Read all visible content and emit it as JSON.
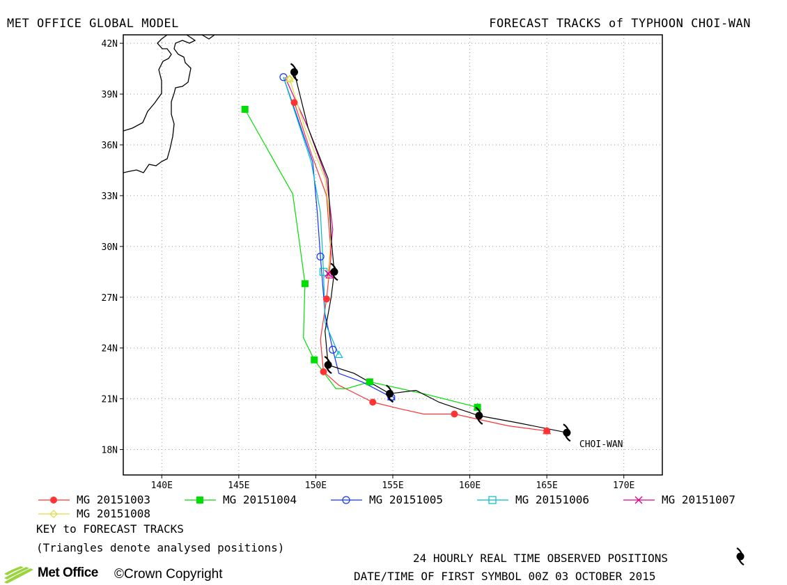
{
  "header": {
    "left": "MET OFFICE GLOBAL MODEL",
    "right": "FORECAST TRACKS of TYPHOON CHOI-WAN"
  },
  "chart_data": {
    "type": "line",
    "xlim": [
      137.5,
      172.5
    ],
    "ylim": [
      16.5,
      42.5
    ],
    "x_ticks": [
      140,
      145,
      150,
      155,
      160,
      165,
      170
    ],
    "x_tick_labels": [
      "140E",
      "145E",
      "150E",
      "155E",
      "160E",
      "165E",
      "170E"
    ],
    "y_ticks": [
      18,
      21,
      24,
      27,
      30,
      33,
      36,
      39,
      42
    ],
    "y_tick_labels": [
      "18N",
      "21N",
      "24N",
      "27N",
      "30N",
      "33N",
      "36N",
      "39N",
      "42N"
    ],
    "grid": true,
    "storm_label": "CHOI-WAN",
    "observed": [
      [
        166.3,
        19.0
      ],
      [
        160.6,
        20.0
      ],
      [
        154.8,
        21.3
      ],
      [
        150.8,
        23.0
      ],
      [
        151.2,
        28.5
      ],
      [
        148.6,
        40.3
      ]
    ],
    "observed_path": [
      [
        166.3,
        19.0
      ],
      [
        163.0,
        19.6
      ],
      [
        160.6,
        20.0
      ],
      [
        158.0,
        20.8
      ],
      [
        156.5,
        21.5
      ],
      [
        154.8,
        21.3
      ],
      [
        152.5,
        22.5
      ],
      [
        150.8,
        23.0
      ],
      [
        150.6,
        25.0
      ],
      [
        151.0,
        27.0
      ],
      [
        151.2,
        28.5
      ],
      [
        151.0,
        30.5
      ],
      [
        150.8,
        34.0
      ],
      [
        149.5,
        37.0
      ],
      [
        148.6,
        40.3
      ]
    ],
    "series": [
      {
        "name": "MG 20151003",
        "color": "#ff3333",
        "marker": "filled-circle",
        "markers": [
          [
            165.0,
            19.1
          ],
          [
            159.0,
            20.1
          ],
          [
            153.7,
            20.8
          ],
          [
            150.5,
            22.6
          ],
          [
            150.7,
            26.9
          ],
          [
            148.6,
            38.5
          ]
        ],
        "path": [
          [
            165.0,
            19.1
          ],
          [
            162.5,
            19.4
          ],
          [
            159.0,
            20.1
          ],
          [
            157.0,
            20.1
          ],
          [
            155.5,
            20.4
          ],
          [
            153.7,
            20.8
          ],
          [
            151.5,
            21.8
          ],
          [
            150.5,
            22.6
          ],
          [
            150.3,
            24.5
          ],
          [
            150.7,
            26.9
          ],
          [
            151.0,
            29.5
          ],
          [
            150.7,
            33.0
          ],
          [
            149.7,
            35.5
          ],
          [
            148.6,
            38.5
          ]
        ]
      },
      {
        "name": "MG 20151004",
        "color": "#00dd00",
        "marker": "filled-square",
        "markers": [
          [
            160.5,
            20.5
          ],
          [
            153.5,
            22.0
          ],
          [
            149.9,
            23.3
          ],
          [
            149.3,
            27.8
          ],
          [
            145.4,
            38.1
          ]
        ],
        "path": [
          [
            160.5,
            20.5
          ],
          [
            157.0,
            21.3
          ],
          [
            153.5,
            22.0
          ],
          [
            152.0,
            21.6
          ],
          [
            151.3,
            21.6
          ],
          [
            149.9,
            23.3
          ],
          [
            149.2,
            24.6
          ],
          [
            149.3,
            27.8
          ],
          [
            148.9,
            30.5
          ],
          [
            148.5,
            33.1
          ],
          [
            145.4,
            38.1
          ]
        ]
      },
      {
        "name": "MG 20151005",
        "color": "#1133ff",
        "marker": "open-circle",
        "markers": [
          [
            154.9,
            21.1
          ],
          [
            151.1,
            23.9
          ],
          [
            150.3,
            29.4
          ],
          [
            147.9,
            40.0
          ]
        ],
        "path": [
          [
            154.9,
            21.1
          ],
          [
            153.0,
            22.0
          ],
          [
            151.5,
            22.5
          ],
          [
            151.1,
            23.9
          ],
          [
            150.6,
            26.0
          ],
          [
            150.3,
            29.4
          ],
          [
            150.1,
            32.0
          ],
          [
            149.8,
            35.0
          ],
          [
            147.9,
            40.0
          ]
        ]
      },
      {
        "name": "MG 20151006",
        "color": "#00bbcc",
        "marker": "open-square",
        "markers": [
          [
            150.5,
            28.5
          ]
        ],
        "path": [
          [
            151.5,
            23.6
          ],
          [
            150.6,
            25.5
          ],
          [
            150.5,
            28.5
          ],
          [
            150.3,
            32.0
          ],
          [
            149.7,
            35.0
          ],
          [
            147.9,
            40.0
          ]
        ]
      },
      {
        "name": "MG 20151007",
        "color": "#dd0088",
        "marker": "cross",
        "markers": [
          [
            150.8,
            28.4
          ]
        ],
        "path": [
          [
            150.8,
            28.4
          ],
          [
            151.1,
            31.0
          ],
          [
            150.7,
            34.0
          ],
          [
            149.5,
            37.0
          ],
          [
            148.0,
            40.0
          ]
        ]
      },
      {
        "name": "MG 20151008",
        "color": "#dddd44",
        "marker": "open-diamond",
        "markers": [
          [
            148.3,
            39.9
          ]
        ],
        "path": [
          [
            150.8,
            28.0
          ],
          [
            151.0,
            31.0
          ],
          [
            150.6,
            34.0
          ],
          [
            149.3,
            37.0
          ],
          [
            148.3,
            39.9
          ]
        ]
      }
    ],
    "analysed_positions": [
      {
        "series": 0,
        "point": [
          165.0,
          19.1
        ]
      },
      {
        "series": 1,
        "point": [
          160.5,
          20.5
        ]
      },
      {
        "series": 2,
        "point": [
          154.9,
          21.1
        ]
      },
      {
        "series": 3,
        "point": [
          151.5,
          23.6
        ]
      },
      {
        "series": 4,
        "point": [
          150.9,
          28.3
        ]
      },
      {
        "series": 5,
        "point": [
          148.3,
          39.9
        ]
      }
    ]
  },
  "legend": {
    "entries": [
      "MG 20151003",
      "MG 20151004",
      "MG 20151005",
      "MG 20151006",
      "MG 20151007",
      "MG 20151008"
    ]
  },
  "footer": {
    "key": "KEY to FORECAST TRACKS",
    "triangles": "(Triangles denote analysed positions)",
    "observed": "24 HOURLY REAL TIME OBSERVED POSITIONS",
    "datetime": "DATE/TIME OF FIRST SYMBOL 00Z 03 OCTOBER 2015",
    "logo": "Met Office",
    "copyright": "©Crown Copyright"
  },
  "colors": {
    "frame": "#000000",
    "grid": "#999999",
    "coast": "#000000"
  }
}
